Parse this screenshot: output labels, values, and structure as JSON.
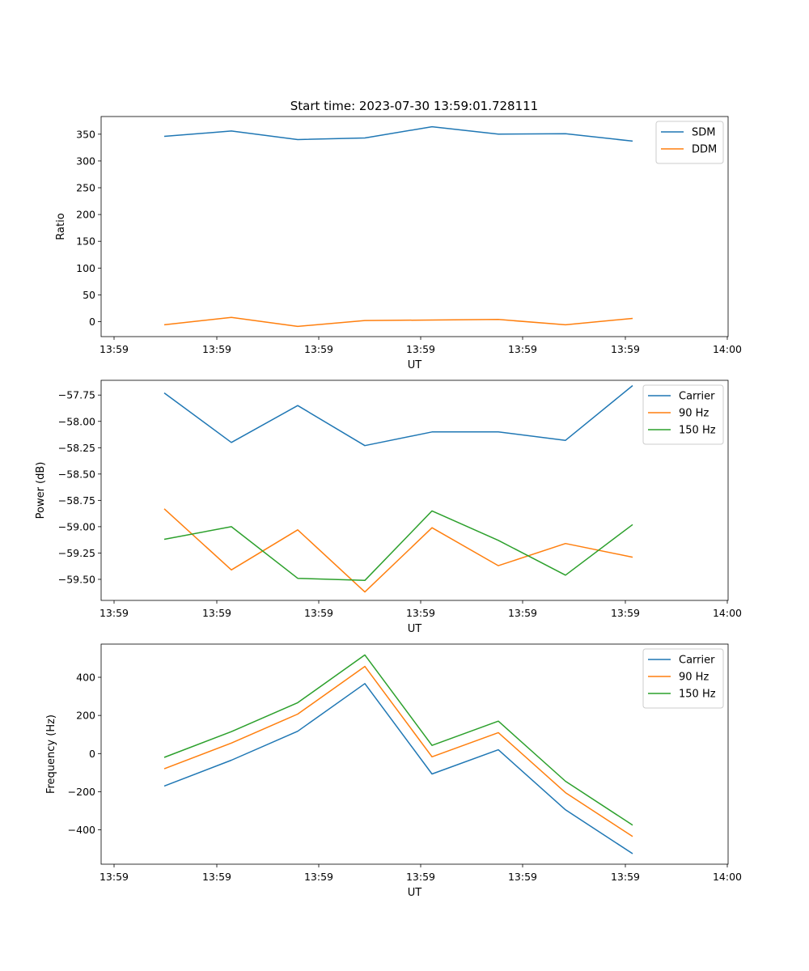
{
  "figure": {
    "title": "Start time: 2023-07-30 13:59:01.728111"
  },
  "chart_data": [
    {
      "type": "line",
      "title": "Start time: 2023-07-30 13:59:01.728111",
      "xlabel": "UT",
      "ylabel": "Ratio",
      "x_tick_labels": [
        "13:59",
        "13:59",
        "13:59",
        "13:59",
        "13:59",
        "13:59",
        "14:00"
      ],
      "x_index": [
        0,
        1,
        2,
        3,
        4,
        5,
        6,
        7
      ],
      "xlim": [
        -0.77,
        8.4
      ],
      "ylim": [
        -28,
        383
      ],
      "y_ticks": [
        0,
        50,
        100,
        150,
        200,
        250,
        300,
        350
      ],
      "y_tick_labels": [
        "0",
        "50",
        "100",
        "150",
        "200",
        "250",
        "300",
        "350"
      ],
      "legend_position": "upper right",
      "series": [
        {
          "name": "SDM",
          "color": "#1f77b4",
          "values": [
            346,
            356,
            340,
            343,
            364,
            350,
            351,
            337
          ]
        },
        {
          "name": "DDM",
          "color": "#ff7f0e",
          "values": [
            -6,
            8,
            -9,
            2,
            3,
            4,
            -6,
            6
          ]
        }
      ]
    },
    {
      "type": "line",
      "title": "",
      "xlabel": "UT",
      "ylabel": "Power (dB)",
      "x_tick_labels": [
        "13:59",
        "13:59",
        "13:59",
        "13:59",
        "13:59",
        "13:59",
        "14:00"
      ],
      "x_index": [
        0,
        1,
        2,
        3,
        4,
        5,
        6,
        7
      ],
      "xlim": [
        -0.77,
        8.4
      ],
      "ylim": [
        -59.7,
        -57.61
      ],
      "y_ticks": [
        -57.75,
        -58.0,
        -58.25,
        -58.5,
        -58.75,
        -59.0,
        -59.25,
        -59.5
      ],
      "y_tick_labels": [
        "−57.75",
        "−58.00",
        "−58.25",
        "−58.50",
        "−58.75",
        "−59.00",
        "−59.25",
        "−59.50"
      ],
      "legend_position": "upper right",
      "series": [
        {
          "name": "Carrier",
          "color": "#1f77b4",
          "values": [
            -57.73,
            -58.2,
            -57.85,
            -58.23,
            -58.1,
            -58.1,
            -58.18,
            -57.66
          ]
        },
        {
          "name": "90 Hz",
          "color": "#ff7f0e",
          "values": [
            -58.83,
            -59.41,
            -59.03,
            -59.62,
            -59.01,
            -59.37,
            -59.16,
            -59.29
          ]
        },
        {
          "name": "150 Hz",
          "color": "#2ca02c",
          "values": [
            -59.12,
            -59.0,
            -59.49,
            -59.51,
            -58.85,
            -59.13,
            -59.46,
            -58.98
          ]
        }
      ]
    },
    {
      "type": "line",
      "title": "",
      "xlabel": "UT",
      "ylabel": "Frequency (Hz)",
      "x_tick_labels": [
        "13:59",
        "13:59",
        "13:59",
        "13:59",
        "13:59",
        "13:59",
        "14:00"
      ],
      "x_index": [
        0,
        1,
        2,
        3,
        4,
        5,
        6,
        7
      ],
      "xlim": [
        -0.77,
        8.4
      ],
      "ylim": [
        -580,
        574
      ],
      "y_ticks": [
        -400,
        -200,
        0,
        200,
        400
      ],
      "y_tick_labels": [
        "−400",
        "−200",
        "0",
        "200",
        "400"
      ],
      "legend_position": "upper right",
      "series": [
        {
          "name": "Carrier",
          "color": "#1f77b4",
          "values": [
            -170,
            -35,
            117,
            367,
            -107,
            20,
            -295,
            -525
          ]
        },
        {
          "name": "90 Hz",
          "color": "#ff7f0e",
          "values": [
            -80,
            55,
            207,
            457,
            -17,
            110,
            -205,
            -435
          ]
        },
        {
          "name": "150 Hz",
          "color": "#2ca02c",
          "values": [
            -20,
            115,
            267,
            517,
            43,
            170,
            -145,
            -375
          ]
        }
      ]
    }
  ]
}
